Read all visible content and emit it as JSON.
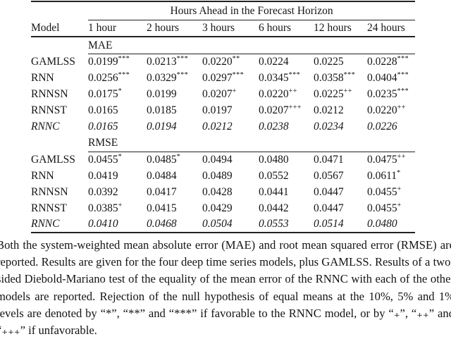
{
  "table": {
    "span_header": "Hours Ahead in the Forecast Horizon",
    "columns": [
      "Model",
      "1 hour",
      "2 hours",
      "3 hours",
      "6 hours",
      "12 hours",
      "24 hours"
    ],
    "sections": [
      {
        "label": "MAE",
        "rows": [
          {
            "model": "GAMLSS",
            "italic": false,
            "values": [
              "0.0199",
              "0.0213",
              "0.0220",
              "0.0224",
              "0.0225",
              "0.0228"
            ],
            "marks": [
              "***",
              "***",
              "**",
              "",
              "",
              "***"
            ]
          },
          {
            "model": "RNN",
            "italic": false,
            "values": [
              "0.0256",
              "0.0329",
              "0.0297",
              "0.0345",
              "0.0358",
              "0.0404"
            ],
            "marks": [
              "***",
              "***",
              "***",
              "***",
              "***",
              "***"
            ]
          },
          {
            "model": "RNNSN",
            "italic": false,
            "values": [
              "0.0175",
              "0.0199",
              "0.0207",
              "0.0220",
              "0.0225",
              "0.0235"
            ],
            "marks": [
              "*",
              "",
              "+",
              "++",
              "++",
              "***"
            ]
          },
          {
            "model": "RNNST",
            "italic": false,
            "values": [
              "0.0165",
              "0.0185",
              "0.0197",
              "0.0207",
              "0.0212",
              "0.0220"
            ],
            "marks": [
              "",
              "",
              "",
              "+++",
              "",
              "++"
            ]
          },
          {
            "model": "RNNC",
            "italic": true,
            "values": [
              "0.0165",
              "0.0194",
              "0.0212",
              "0.0238",
              "0.0234",
              "0.0226"
            ],
            "marks": [
              "",
              "",
              "",
              "",
              "",
              ""
            ]
          }
        ]
      },
      {
        "label": "RMSE",
        "rows": [
          {
            "model": "GAMLSS",
            "italic": false,
            "values": [
              "0.0455",
              "0.0485",
              "0.0494",
              "0.0480",
              "0.0471",
              "0.0475"
            ],
            "marks": [
              "*",
              "*",
              "",
              "",
              "",
              "++"
            ]
          },
          {
            "model": "RNN",
            "italic": false,
            "values": [
              "0.0419",
              "0.0484",
              "0.0489",
              "0.0552",
              "0.0567",
              "0.0611"
            ],
            "marks": [
              "",
              "",
              "",
              "",
              "",
              "*"
            ]
          },
          {
            "model": "RNNSN",
            "italic": false,
            "values": [
              "0.0392",
              "0.0417",
              "0.0428",
              "0.0441",
              "0.0447",
              "0.0455"
            ],
            "marks": [
              "",
              "",
              "",
              "",
              "",
              "+"
            ]
          },
          {
            "model": "RNNST",
            "italic": false,
            "values": [
              "0.0385",
              "0.0415",
              "0.0429",
              "0.0442",
              "0.0447",
              "0.0455"
            ],
            "marks": [
              "+",
              "",
              "",
              "",
              "",
              "+"
            ]
          },
          {
            "model": "RNNC",
            "italic": true,
            "values": [
              "0.0410",
              "0.0468",
              "0.0504",
              "0.0553",
              "0.0514",
              "0.0480"
            ],
            "marks": [
              "",
              "",
              "",
              "",
              "",
              ""
            ]
          }
        ]
      }
    ]
  },
  "footnote": {
    "text": "Both the system-weighted mean absolute error (MAE) and root mean squared error (RMSE) are reported. Results are given for the four deep time series models, plus GAMLSS. Results of a two-sided Diebold-Mariano test of the equality of the mean error of the RNNC with each of the other models are reported. Rejection of the null hypothesis of equal means at the 10%, 5% and 1% levels are denoted by “*”, “**” and “***” if favorable to the RNNC model, or by “₊”, “₊₊” and “₊₊₊” if unfavorable."
  }
}
